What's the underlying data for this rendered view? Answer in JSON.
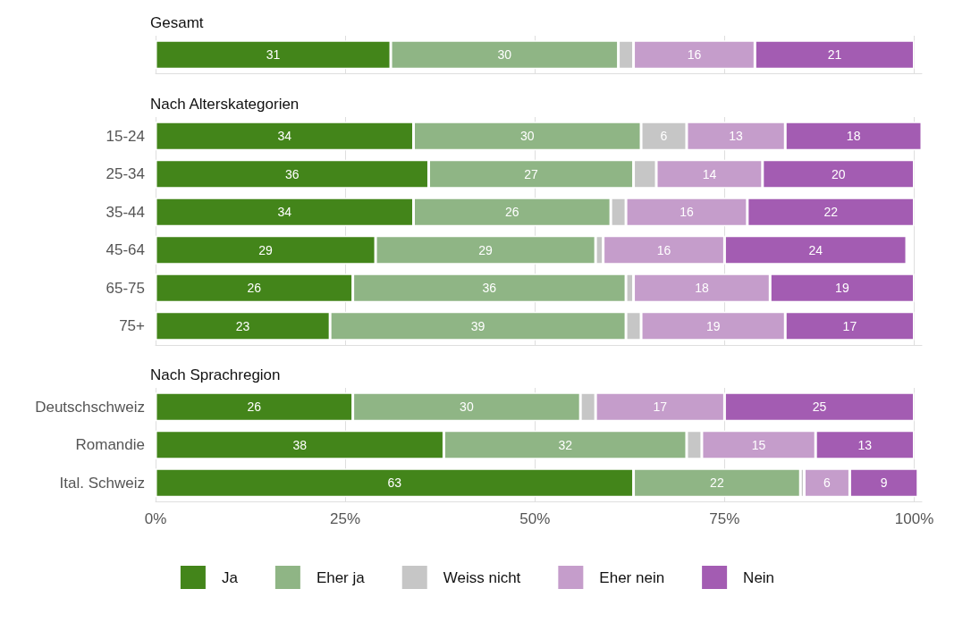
{
  "chart_data": [
    {
      "type": "bar",
      "orientation": "horizontal",
      "stacked": true,
      "title": "Gesamt",
      "categories": [
        null
      ],
      "xlim": [
        0,
        101
      ],
      "xticks": [
        0,
        25,
        50,
        75,
        100
      ],
      "tick_labels": "y",
      "grid": "x",
      "legend": false,
      "series": [
        {
          "color": "#43851a",
          "values": [
            31
          ],
          "value_labels": [
            "31"
          ]
        },
        {
          "color": "#8fb585",
          "values": [
            30
          ],
          "value_labels": [
            "30"
          ]
        },
        {
          "color": "#c6c6c6",
          "values": [
            2
          ],
          "value_labels": [
            null
          ]
        },
        {
          "color": "#c59dcb",
          "values": [
            16
          ],
          "value_labels": [
            "16"
          ]
        },
        {
          "color": "#a35cb2",
          "values": [
            21
          ],
          "value_labels": [
            "21"
          ]
        }
      ]
    },
    {
      "type": "bar",
      "orientation": "horizontal",
      "stacked": true,
      "title": "Nach Alterskategorien",
      "categories": [
        "15-24",
        "25-34",
        "35-44",
        "45-64",
        "65-75",
        "75+"
      ],
      "xlim": [
        0,
        101
      ],
      "xticks": [
        0,
        25,
        50,
        75,
        100
      ],
      "tick_labels": "y",
      "grid": "x",
      "legend": false,
      "series": [
        {
          "color": "#43851a",
          "values": [
            34,
            36,
            34,
            29,
            26,
            23
          ],
          "value_labels": [
            "34",
            "36",
            "34",
            "29",
            "26",
            "23"
          ]
        },
        {
          "color": "#8fb585",
          "values": [
            30,
            27,
            26,
            29,
            36,
            39
          ],
          "value_labels": [
            "30",
            "27",
            "26",
            "29",
            "36",
            "39"
          ]
        },
        {
          "color": "#c6c6c6",
          "values": [
            6,
            3,
            2,
            1,
            1,
            2
          ],
          "value_labels": [
            "6",
            null,
            null,
            null,
            null,
            null
          ]
        },
        {
          "color": "#c59dcb",
          "values": [
            13,
            14,
            16,
            16,
            18,
            19
          ],
          "value_labels": [
            "13",
            "14",
            "16",
            "16",
            "18",
            "19"
          ]
        },
        {
          "color": "#a35cb2",
          "values": [
            18,
            20,
            22,
            24,
            19,
            17
          ],
          "value_labels": [
            "18",
            "20",
            "22",
            "24",
            "19",
            "17"
          ]
        }
      ]
    },
    {
      "type": "bar",
      "orientation": "horizontal",
      "stacked": true,
      "title": "Nach Sprachregion",
      "categories": [
        "Deutschschweiz",
        "Romandie",
        "Ital. Schweiz"
      ],
      "xlim": [
        0,
        101
      ],
      "xticks": [
        {
          "value": 0,
          "label": "0%"
        },
        {
          "value": 25,
          "label": "25%"
        },
        {
          "value": 50,
          "label": "50%"
        },
        {
          "value": 75,
          "label": "75%"
        },
        {
          "value": 100,
          "label": "100%"
        }
      ],
      "grid": "x",
      "legend": "bottom",
      "series": [
        {
          "name": "Ja",
          "color": "#43851a",
          "values": [
            26,
            38,
            63
          ],
          "value_labels": [
            "26",
            "38",
            "63"
          ]
        },
        {
          "name": "Eher ja",
          "color": "#8fb585",
          "values": [
            30,
            32,
            22
          ],
          "value_labels": [
            "30",
            "32",
            "22"
          ]
        },
        {
          "name": "Weiss nicht",
          "color": "#c6c6c6",
          "values": [
            2,
            2,
            0.5
          ],
          "value_labels": [
            null,
            null,
            null
          ]
        },
        {
          "name": "Eher nein",
          "color": "#c59dcb",
          "values": [
            17,
            15,
            6
          ],
          "value_labels": [
            "17",
            "15",
            "6"
          ]
        },
        {
          "name": "Nein",
          "color": "#a35cb2",
          "values": [
            25,
            13,
            9
          ],
          "value_labels": [
            "25",
            "13",
            "9"
          ]
        }
      ]
    }
  ]
}
